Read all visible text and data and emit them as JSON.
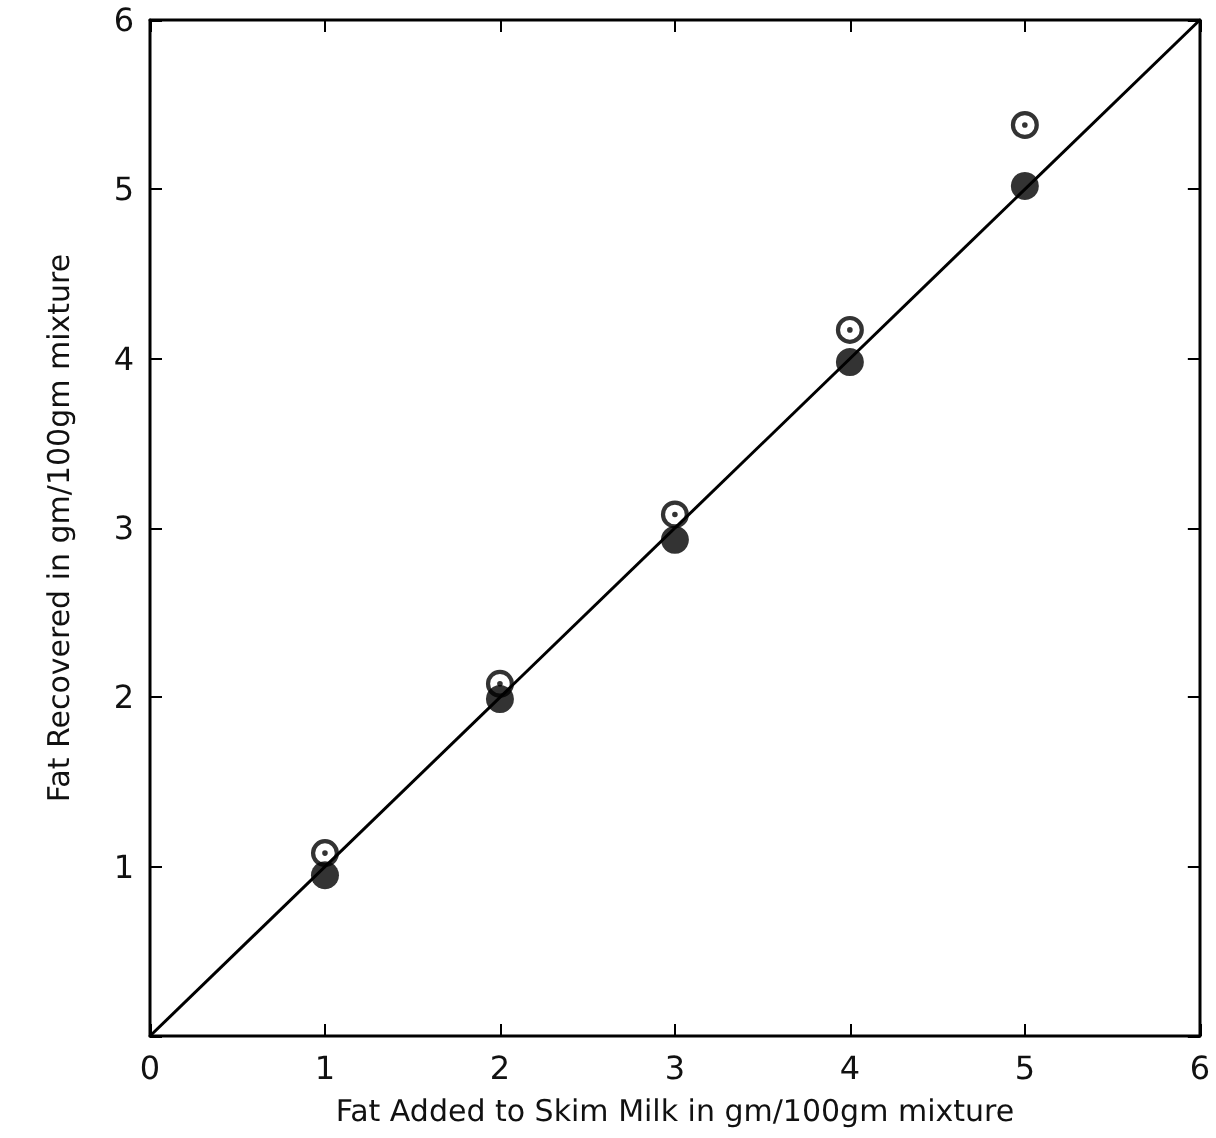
{
  "chart_data": {
    "type": "scatter",
    "xlabel": "Fat Added to Skim Milk in gm/100gm mixture",
    "ylabel": "Fat Recovered in gm/100gm mixture",
    "series": [
      {
        "color": "#000000",
        "marker": "circle",
        "x": [
          1,
          2,
          3,
          4,
          5
        ],
        "values": [
          0.95,
          1.99,
          2.93,
          3.98,
          5.02
        ]
      },
      {
        "color": "#000000",
        "marker": "circle",
        "x": [
          1,
          2,
          3,
          4,
          5
        ],
        "values": [
          1.08,
          2.08,
          3.08,
          4.17,
          5.38
        ]
      },
      {
        "type": "line",
        "color": "#000000",
        "marker": "none",
        "line_style": "solid",
        "x": [
          0,
          6
        ],
        "values": [
          0,
          6
        ]
      }
    ],
    "xlim": [
      0,
      6
    ],
    "ylim": [
      0,
      6
    ],
    "xticks": [
      0,
      1,
      2,
      3,
      4,
      5,
      6
    ],
    "yticks": [
      {
        "value": 0,
        "label": null
      },
      1,
      2,
      3,
      4,
      5,
      6
    ],
    "grid": false
  }
}
